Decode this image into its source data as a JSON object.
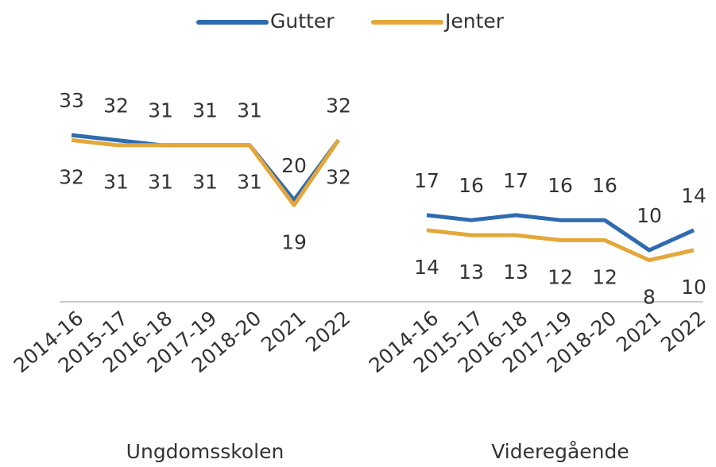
{
  "chart_data": {
    "type": "line",
    "series": [
      {
        "name": "Gutter",
        "color": "#2e6bb0",
        "values": [
          [
            33,
            32,
            31,
            31,
            31,
            20,
            32
          ],
          [
            17,
            16,
            17,
            16,
            16,
            10,
            14
          ]
        ]
      },
      {
        "name": "Jenter",
        "color": "#e3a73b",
        "values": [
          [
            32,
            31,
            31,
            31,
            31,
            19,
            32
          ],
          [
            14,
            13,
            13,
            12,
            12,
            8,
            10
          ]
        ]
      }
    ],
    "groups": [
      {
        "label": "Ungdomsskolen",
        "categories": [
          "2014-16",
          "2015-17",
          "2016-18",
          "2017-19",
          "2018-20",
          "2021",
          "2022"
        ]
      },
      {
        "label": "Videregående",
        "categories": [
          "2014-16",
          "2015-17",
          "2016-18",
          "2017-19",
          "2018-20",
          "2021",
          "2022"
        ]
      }
    ]
  }
}
